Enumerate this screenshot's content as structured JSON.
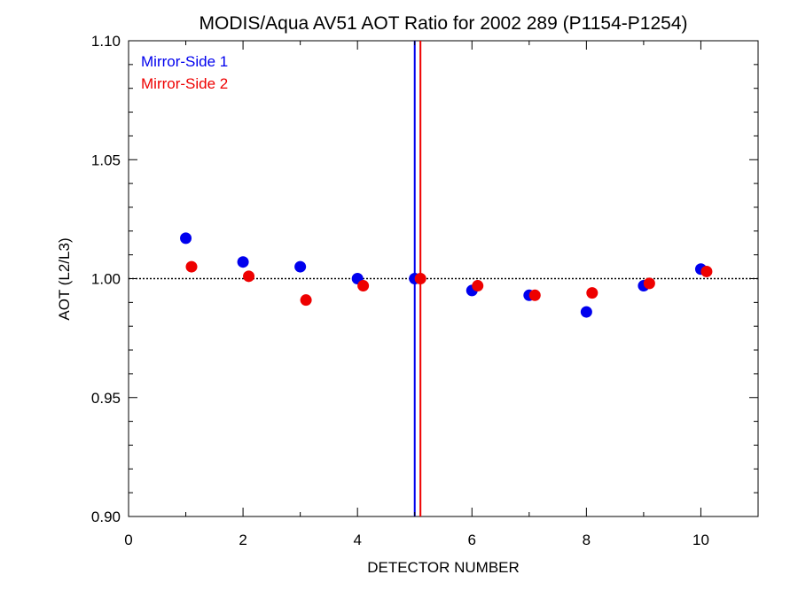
{
  "chart_data": {
    "type": "scatter",
    "title": "MODIS/Aqua AV51 AOT Ratio for 2002 289 (P1154-P1254)",
    "xlabel": "DETECTOR NUMBER",
    "ylabel": "AOT (L2/L3)",
    "xlim": [
      0,
      11
    ],
    "ylim": [
      0.9,
      1.1
    ],
    "x_ticks": [
      0,
      2,
      4,
      6,
      8,
      10
    ],
    "x_tick_labels": [
      "0",
      "2",
      "4",
      "6",
      "8",
      "10"
    ],
    "y_ticks": [
      0.9,
      0.95,
      1.0,
      1.05,
      1.1
    ],
    "y_tick_labels": [
      "0.90",
      "0.95",
      "1.00",
      "1.05",
      "1.10"
    ],
    "reference_line_y": 1.0,
    "legend_position": "top-left",
    "series": [
      {
        "name": "Mirror-Side 1",
        "color": "#0000ee",
        "x": [
          1,
          2,
          3,
          4,
          5,
          6,
          7,
          8,
          9,
          10
        ],
        "y": [
          1.017,
          1.007,
          1.005,
          1.0,
          1.0,
          0.995,
          0.993,
          0.986,
          0.997,
          1.004
        ],
        "vertical_line_x": 5.0
      },
      {
        "name": "Mirror-Side 2",
        "color": "#ee0000",
        "x": [
          1.1,
          2.1,
          3.1,
          4.1,
          5.1,
          6.1,
          7.1,
          8.1,
          9.1,
          10.1
        ],
        "y": [
          1.005,
          1.001,
          0.991,
          0.997,
          1.0,
          0.997,
          0.993,
          0.994,
          0.998,
          1.003
        ],
        "vertical_line_x": 5.1
      }
    ]
  }
}
